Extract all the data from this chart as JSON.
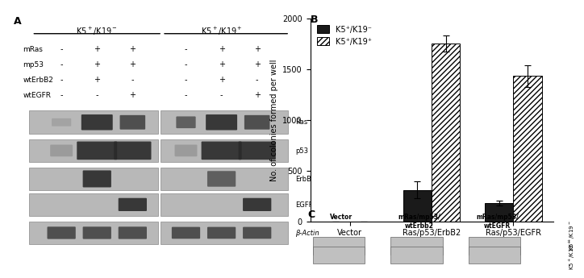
{
  "title_B": "B",
  "title_A": "A",
  "title_C": "C",
  "ylabel": "No. of colonies formed per well",
  "categories": [
    "Vector",
    "Ras/p53/ErbB2",
    "Ras/p53/EGFR"
  ],
  "series1_label": "K5⁺/K19⁻",
  "series2_label": "K5⁺/K19⁺",
  "series1_values": [
    0,
    310,
    180
  ],
  "series2_values": [
    0,
    1750,
    1430
  ],
  "series1_errors": [
    0,
    80,
    25
  ],
  "series2_errors": [
    0,
    80,
    110
  ],
  "ylim": [
    0,
    2000
  ],
  "yticks": [
    0,
    500,
    1000,
    1500,
    2000
  ],
  "bar_width": 0.35,
  "series1_color": "#1a1a1a",
  "series2_color": "#ffffff",
  "background_color": "#ffffff",
  "panel_A_bg": "#d8d8d8",
  "panel_C_bg": "#c8c8c8",
  "axis_fontsize": 7,
  "tick_fontsize": 7,
  "legend_fontsize": 7,
  "label_fontsize": 7,
  "panel_label_fontsize": 9,
  "wb_labels": [
    "Ras",
    "p53",
    "ErbB2",
    "EGFR",
    "β-Actin"
  ],
  "wb_row_labels_x": [
    "K5⁺/K19⁻",
    "K5⁺/K19⁺"
  ],
  "plus_minus_rows": [
    "mRas",
    "mp53",
    "wtErbB2",
    "wtEGFR"
  ],
  "col_signs_K19neg": [
    "-",
    "+",
    "+"
  ],
  "col_signs_K19pos": [
    "-",
    "+",
    "+"
  ],
  "mp53_signs_K19neg": [
    "-",
    "+",
    "+"
  ],
  "mp53_signs_K19pos": [
    "-",
    "+",
    "+"
  ],
  "wtErbB2_signs_K19neg": [
    "-",
    "+",
    "-"
  ],
  "wtErbB2_signs_K19pos": [
    "-",
    "+",
    "-"
  ],
  "wtEGFR_signs_K19neg": [
    "-",
    "-",
    "+"
  ],
  "wtEGFR_signs_K19pos": [
    "-",
    "-",
    "+"
  ],
  "col_labels_C": [
    "Vector",
    "mRas/mp53/\nwtErbb2",
    "mRas/mp53/\nwtEGFR"
  ],
  "row_labels_C_right": [
    "K5⁺/K19⁻",
    "K5⁺/K19⁺"
  ]
}
